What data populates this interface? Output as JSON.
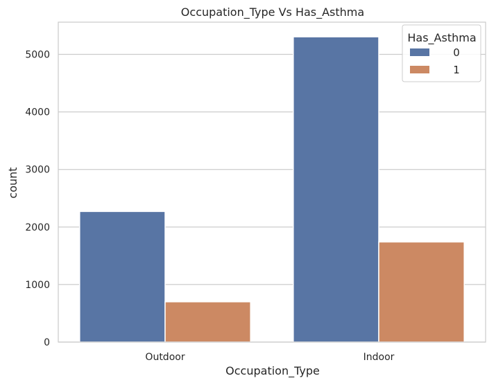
{
  "chart_data": {
    "type": "bar",
    "title": "Occupation_Type Vs Has_Asthma",
    "xlabel": "Occupation_Type",
    "ylabel": "count",
    "categories": [
      "Outdoor",
      "Indoor"
    ],
    "series": [
      {
        "name": "0",
        "values": [
          2270,
          5305
        ],
        "color": "#5875a4"
      },
      {
        "name": "1",
        "values": [
          700,
          1740
        ],
        "color": "#cc8963"
      }
    ],
    "ylim": [
      0,
      5560
    ],
    "yticks": [
      0,
      1000,
      2000,
      3000,
      4000,
      5000
    ],
    "grid": true,
    "legend": {
      "title": "Has_Asthma",
      "placement": "top-right"
    }
  }
}
